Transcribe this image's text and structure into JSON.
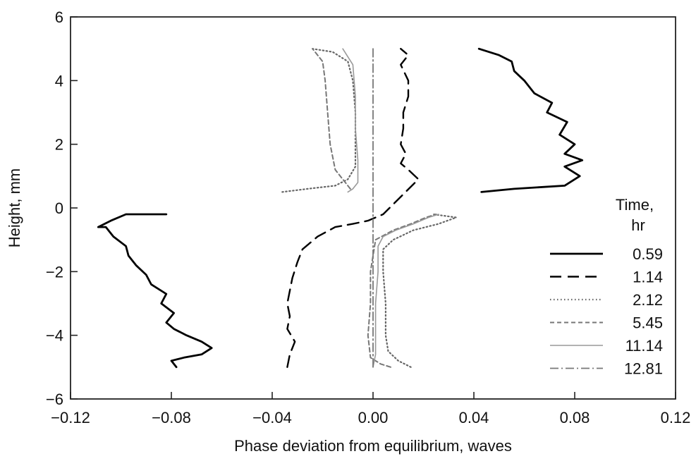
{
  "chart_data": {
    "type": "line",
    "title": "",
    "xlabel": "Phase deviation from equilibrium, waves",
    "ylabel": "Height, mm",
    "xlim": [
      -0.12,
      0.12
    ],
    "ylim": [
      -6,
      6
    ],
    "x_ticks": [
      -0.12,
      -0.08,
      -0.04,
      0.0,
      0.04,
      0.08,
      0.12
    ],
    "x_tick_labels": [
      "−0.12",
      "−0.08",
      "−0.04",
      "0.00",
      "0.04",
      "0.08",
      "0.12"
    ],
    "y_ticks": [
      -6,
      -4,
      -2,
      0,
      2,
      4,
      6
    ],
    "y_tick_labels": [
      "−6",
      "−4",
      "−2",
      "0",
      "2",
      "4",
      "6"
    ],
    "grid": false,
    "legend_title_line1": "Time,",
    "legend_title_line2": "hr",
    "legend_position": "lower-right",
    "series": [
      {
        "name": "0.59",
        "style": "solid",
        "color": "#000000",
        "points": [
          [
            -0.078,
            -5.0
          ],
          [
            -0.08,
            -4.8
          ],
          [
            -0.075,
            -4.7
          ],
          [
            -0.068,
            -4.6
          ],
          [
            -0.064,
            -4.4
          ],
          [
            -0.068,
            -4.2
          ],
          [
            -0.074,
            -4.0
          ],
          [
            -0.079,
            -3.8
          ],
          [
            -0.082,
            -3.6
          ],
          [
            -0.079,
            -3.3
          ],
          [
            -0.084,
            -3.0
          ],
          [
            -0.082,
            -2.7
          ],
          [
            -0.088,
            -2.4
          ],
          [
            -0.09,
            -2.1
          ],
          [
            -0.094,
            -1.8
          ],
          [
            -0.097,
            -1.5
          ],
          [
            -0.098,
            -1.2
          ],
          [
            -0.103,
            -0.9
          ],
          [
            -0.106,
            -0.6
          ],
          [
            -0.109,
            -0.6
          ],
          [
            -0.104,
            -0.4
          ],
          [
            -0.098,
            -0.2
          ],
          [
            -0.082,
            -0.2
          ],
          [
            0.043,
            0.5
          ],
          [
            0.056,
            0.6
          ],
          [
            0.076,
            0.7
          ],
          [
            0.082,
            1.0
          ],
          [
            0.076,
            1.3
          ],
          [
            0.083,
            1.5
          ],
          [
            0.076,
            1.7
          ],
          [
            0.08,
            2.0
          ],
          [
            0.074,
            2.3
          ],
          [
            0.077,
            2.7
          ],
          [
            0.069,
            3.0
          ],
          [
            0.071,
            3.3
          ],
          [
            0.064,
            3.6
          ],
          [
            0.06,
            4.0
          ],
          [
            0.056,
            4.3
          ],
          [
            0.055,
            4.6
          ],
          [
            0.05,
            4.8
          ],
          [
            0.042,
            5.0
          ]
        ]
      },
      {
        "name": "1.14",
        "style": "longdash",
        "color": "#000000",
        "points": [
          [
            -0.034,
            -5.0
          ],
          [
            -0.033,
            -4.6
          ],
          [
            -0.031,
            -4.2
          ],
          [
            -0.034,
            -3.8
          ],
          [
            -0.033,
            -3.4
          ],
          [
            -0.034,
            -3.0
          ],
          [
            -0.033,
            -2.6
          ],
          [
            -0.032,
            -2.2
          ],
          [
            -0.03,
            -1.7
          ],
          [
            -0.028,
            -1.3
          ],
          [
            -0.022,
            -0.9
          ],
          [
            -0.015,
            -0.6
          ],
          [
            -0.008,
            -0.5
          ],
          [
            -0.002,
            -0.4
          ],
          [
            0.004,
            -0.2
          ],
          [
            0.018,
            0.9
          ],
          [
            0.014,
            1.2
          ],
          [
            0.011,
            1.4
          ],
          [
            0.013,
            1.7
          ],
          [
            0.011,
            2.0
          ],
          [
            0.012,
            2.5
          ],
          [
            0.012,
            3.0
          ],
          [
            0.014,
            3.5
          ],
          [
            0.014,
            4.0
          ],
          [
            0.011,
            4.5
          ],
          [
            0.014,
            4.8
          ],
          [
            0.011,
            5.0
          ]
        ]
      },
      {
        "name": "2.12",
        "style": "dotted",
        "color": "#666666",
        "points": [
          [
            0.015,
            -5.0
          ],
          [
            0.01,
            -4.8
          ],
          [
            0.006,
            -4.5
          ],
          [
            0.005,
            -4.0
          ],
          [
            0.005,
            -3.0
          ],
          [
            0.004,
            -2.0
          ],
          [
            0.004,
            -1.3
          ],
          [
            0.008,
            -1.0
          ],
          [
            0.016,
            -0.7
          ],
          [
            0.026,
            -0.5
          ],
          [
            0.033,
            -0.3
          ],
          [
            0.024,
            -0.2
          ],
          [
            -0.036,
            0.5
          ],
          [
            -0.026,
            0.6
          ],
          [
            -0.015,
            0.7
          ],
          [
            -0.01,
            0.9
          ],
          [
            -0.007,
            1.3
          ],
          [
            -0.007,
            2.0
          ],
          [
            -0.007,
            3.0
          ],
          [
            -0.008,
            4.0
          ],
          [
            -0.01,
            4.6
          ],
          [
            -0.016,
            4.9
          ],
          [
            -0.024,
            5.0
          ]
        ]
      },
      {
        "name": "5.45",
        "style": "shortdash",
        "color": "#777777",
        "points": [
          [
            0.007,
            -5.0
          ],
          [
            0.003,
            -4.9
          ],
          [
            -0.001,
            -4.7
          ],
          [
            -0.002,
            -4.0
          ],
          [
            -0.001,
            -3.0
          ],
          [
            -0.001,
            -2.0
          ],
          [
            0.001,
            -1.0
          ],
          [
            0.008,
            -0.7
          ],
          [
            0.015,
            -0.5
          ],
          [
            0.021,
            -0.3
          ],
          [
            0.025,
            -0.2
          ],
          [
            -0.009,
            0.6
          ],
          [
            -0.011,
            0.8
          ],
          [
            -0.015,
            1.2
          ],
          [
            -0.017,
            2.0
          ],
          [
            -0.018,
            3.0
          ],
          [
            -0.019,
            4.0
          ],
          [
            -0.02,
            4.6
          ],
          [
            -0.024,
            5.0
          ]
        ]
      },
      {
        "name": "11.14",
        "style": "solid-thin",
        "color": "#999999",
        "points": [
          [
            0.0,
            -5.0
          ],
          [
            0.001,
            -4.6
          ],
          [
            0.001,
            -4.0
          ],
          [
            0.001,
            -3.0
          ],
          [
            0.002,
            -2.0
          ],
          [
            0.002,
            -1.2
          ],
          [
            0.004,
            -0.9
          ],
          [
            0.009,
            -0.7
          ],
          [
            0.016,
            -0.5
          ],
          [
            0.022,
            -0.3
          ],
          [
            0.026,
            -0.2
          ],
          [
            -0.01,
            0.5
          ],
          [
            -0.008,
            0.6
          ],
          [
            -0.006,
            0.8
          ],
          [
            -0.006,
            1.5
          ],
          [
            -0.007,
            2.5
          ],
          [
            -0.007,
            3.5
          ],
          [
            -0.008,
            4.5
          ],
          [
            -0.012,
            5.0
          ]
        ]
      },
      {
        "name": "12.81",
        "style": "dashdot",
        "color": "#777777",
        "points": [
          [
            0.0,
            -5.0
          ],
          [
            0.0,
            -4.0
          ],
          [
            0.0,
            -3.0
          ],
          [
            0.0,
            -2.0
          ],
          [
            0.0,
            -1.0
          ],
          [
            0.0,
            0.0
          ],
          [
            0.0,
            1.0
          ],
          [
            0.0,
            2.0
          ],
          [
            0.0,
            3.0
          ],
          [
            0.0,
            4.0
          ],
          [
            0.0,
            5.0
          ]
        ]
      }
    ]
  }
}
